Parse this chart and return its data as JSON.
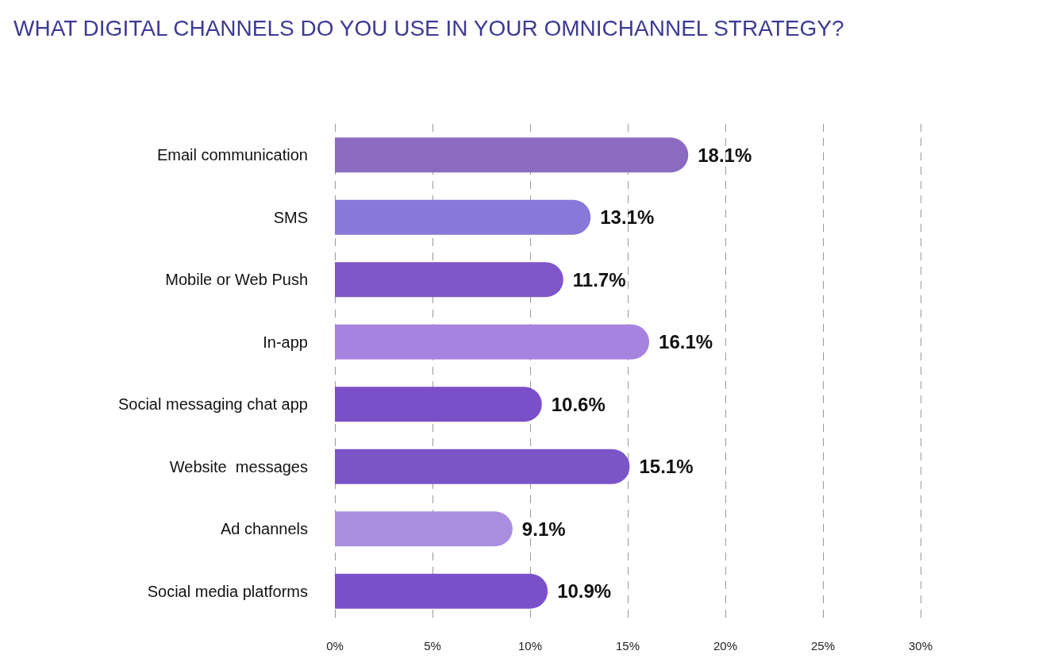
{
  "chart_data": {
    "type": "bar",
    "orientation": "horizontal",
    "title": "WHAT DIGITAL CHANNELS DO YOU USE IN YOUR OMNICHANNEL STRATEGY?",
    "categories": [
      "Email communication",
      "SMS",
      "Mobile or Web Push",
      "In-app",
      "Social messaging chat app",
      "Website  messages",
      "Ad channels",
      "Social media platforms"
    ],
    "values": [
      18.1,
      13.1,
      11.7,
      16.1,
      10.6,
      15.1,
      9.1,
      10.9
    ],
    "colors": [
      "#8a6bbf",
      "#8878d8",
      "#8055c8",
      "#a783e0",
      "#7a4fc8",
      "#7a55c8",
      "#a98ee0",
      "#7a4fc8"
    ],
    "xlim": [
      0,
      30
    ],
    "xticks": [
      {
        "value": 0,
        "label": "0%"
      },
      {
        "value": 5,
        "label": "5%"
      },
      {
        "value": 10,
        "label": "10%"
      },
      {
        "value": 15,
        "label": "15%"
      },
      {
        "value": 20,
        "label": "20%"
      },
      {
        "value": 25,
        "label": "25%"
      },
      {
        "value": 30,
        "label": "30%"
      }
    ],
    "value_labels": [
      "18.1%",
      "13.1%",
      "11.7%",
      "16.1%",
      "10.6%",
      "15.1%",
      "9.1%",
      "10.9%"
    ],
    "grid": "x"
  }
}
